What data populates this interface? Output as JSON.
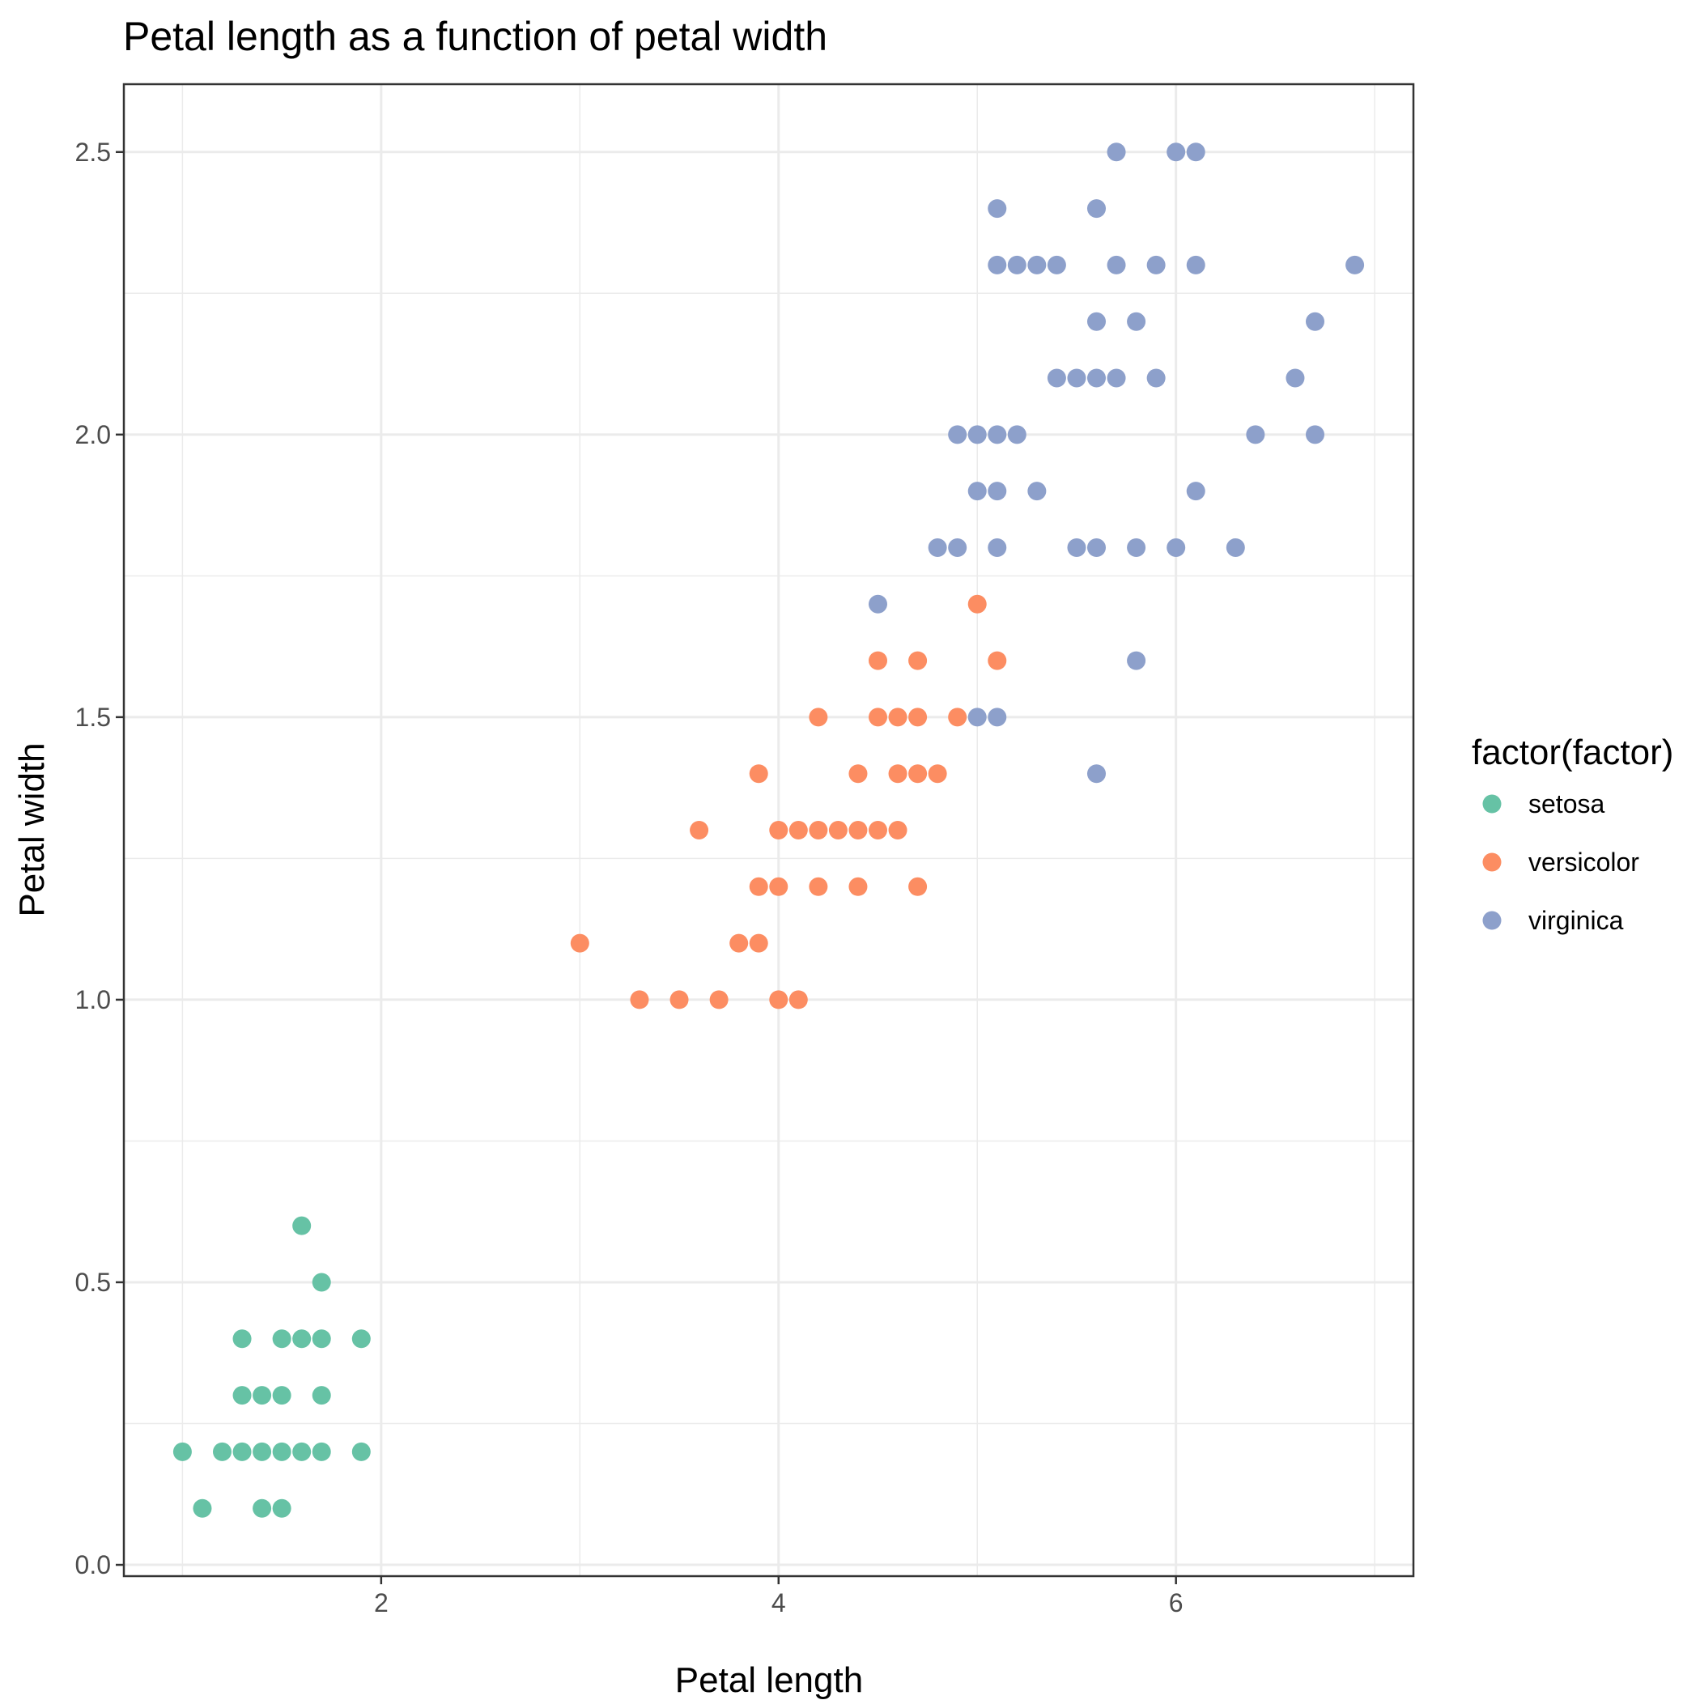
{
  "chart_data": {
    "type": "scatter",
    "title": "Petal length as a function of petal width",
    "xlabel": "Petal length",
    "ylabel": "Petal width",
    "xlim": [
      0.705,
      7.195
    ],
    "ylim": [
      -0.02,
      2.62
    ],
    "x_ticks": [
      2,
      4,
      6
    ],
    "x_tick_labels": [
      "2",
      "4",
      "6"
    ],
    "y_ticks": [
      0,
      0.5,
      1,
      1.5,
      2,
      2.5
    ],
    "y_tick_labels": [
      "0.0",
      "0.5",
      "1.0",
      "1.5",
      "2.0",
      "2.5"
    ],
    "grid": true,
    "legend": {
      "title": "factor(factor)",
      "position": "right"
    },
    "series": [
      {
        "name": "setosa",
        "color": "#66C2A5",
        "points": [
          [
            1.0,
            0.2
          ],
          [
            1.1,
            0.1
          ],
          [
            1.2,
            0.2
          ],
          [
            1.3,
            0.2
          ],
          [
            1.3,
            0.3
          ],
          [
            1.3,
            0.4
          ],
          [
            1.4,
            0.1
          ],
          [
            1.4,
            0.2
          ],
          [
            1.4,
            0.3
          ],
          [
            1.5,
            0.1
          ],
          [
            1.5,
            0.2
          ],
          [
            1.5,
            0.3
          ],
          [
            1.5,
            0.4
          ],
          [
            1.6,
            0.2
          ],
          [
            1.6,
            0.4
          ],
          [
            1.6,
            0.6
          ],
          [
            1.7,
            0.2
          ],
          [
            1.7,
            0.3
          ],
          [
            1.7,
            0.4
          ],
          [
            1.7,
            0.5
          ],
          [
            1.9,
            0.2
          ],
          [
            1.9,
            0.4
          ]
        ]
      },
      {
        "name": "versicolor",
        "color": "#FC8D62",
        "points": [
          [
            3.0,
            1.1
          ],
          [
            3.3,
            1.0
          ],
          [
            3.5,
            1.0
          ],
          [
            3.6,
            1.3
          ],
          [
            3.7,
            1.0
          ],
          [
            3.8,
            1.1
          ],
          [
            3.9,
            1.1
          ],
          [
            3.9,
            1.2
          ],
          [
            3.9,
            1.4
          ],
          [
            4.0,
            1.0
          ],
          [
            4.0,
            1.2
          ],
          [
            4.0,
            1.3
          ],
          [
            4.1,
            1.0
          ],
          [
            4.1,
            1.3
          ],
          [
            4.2,
            1.2
          ],
          [
            4.2,
            1.3
          ],
          [
            4.2,
            1.5
          ],
          [
            4.3,
            1.3
          ],
          [
            4.4,
            1.2
          ],
          [
            4.4,
            1.3
          ],
          [
            4.4,
            1.4
          ],
          [
            4.5,
            1.3
          ],
          [
            4.5,
            1.5
          ],
          [
            4.5,
            1.6
          ],
          [
            4.6,
            1.3
          ],
          [
            4.6,
            1.4
          ],
          [
            4.6,
            1.5
          ],
          [
            4.7,
            1.2
          ],
          [
            4.7,
            1.4
          ],
          [
            4.7,
            1.5
          ],
          [
            4.7,
            1.6
          ],
          [
            4.8,
            1.4
          ],
          [
            4.9,
            1.5
          ],
          [
            5.0,
            1.7
          ],
          [
            5.1,
            1.6
          ]
        ]
      },
      {
        "name": "virginica",
        "color": "#8DA0CB",
        "points": [
          [
            4.5,
            1.7
          ],
          [
            4.8,
            1.8
          ],
          [
            4.9,
            1.8
          ],
          [
            4.9,
            2.0
          ],
          [
            5.0,
            1.5
          ],
          [
            5.0,
            1.9
          ],
          [
            5.0,
            2.0
          ],
          [
            5.1,
            1.5
          ],
          [
            5.1,
            1.8
          ],
          [
            5.1,
            1.9
          ],
          [
            5.1,
            2.0
          ],
          [
            5.1,
            2.3
          ],
          [
            5.1,
            2.4
          ],
          [
            5.2,
            2.0
          ],
          [
            5.2,
            2.3
          ],
          [
            5.3,
            1.9
          ],
          [
            5.3,
            2.3
          ],
          [
            5.4,
            2.1
          ],
          [
            5.4,
            2.3
          ],
          [
            5.5,
            1.8
          ],
          [
            5.5,
            2.1
          ],
          [
            5.6,
            1.4
          ],
          [
            5.6,
            1.8
          ],
          [
            5.6,
            2.1
          ],
          [
            5.6,
            2.2
          ],
          [
            5.6,
            2.4
          ],
          [
            5.7,
            2.1
          ],
          [
            5.7,
            2.3
          ],
          [
            5.7,
            2.5
          ],
          [
            5.8,
            1.6
          ],
          [
            5.8,
            1.8
          ],
          [
            5.8,
            2.2
          ],
          [
            5.9,
            2.1
          ],
          [
            5.9,
            2.3
          ],
          [
            6.0,
            1.8
          ],
          [
            6.0,
            2.5
          ],
          [
            6.1,
            1.9
          ],
          [
            6.1,
            2.3
          ],
          [
            6.1,
            2.5
          ],
          [
            6.3,
            1.8
          ],
          [
            6.4,
            2.0
          ],
          [
            6.6,
            2.1
          ],
          [
            6.7,
            2.0
          ],
          [
            6.7,
            2.2
          ],
          [
            6.9,
            2.3
          ]
        ]
      }
    ]
  }
}
